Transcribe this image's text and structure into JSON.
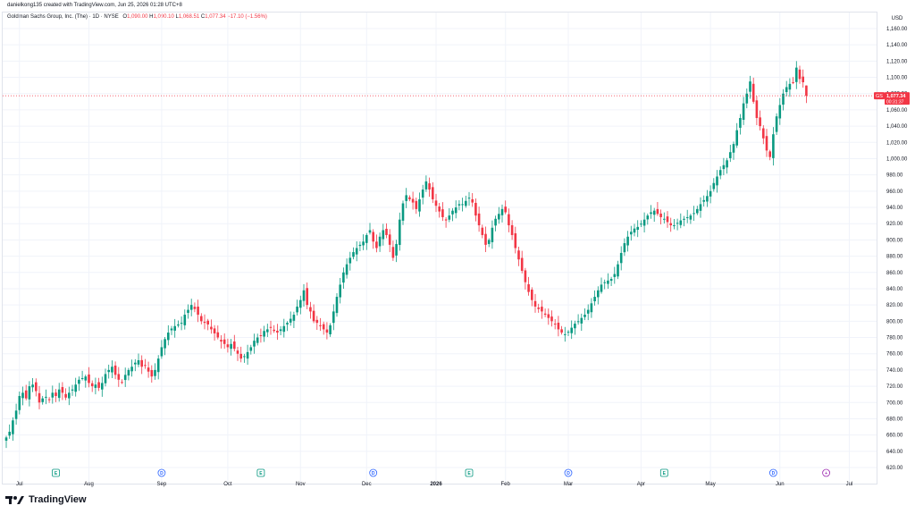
{
  "caption": "danielkong135 created with TradingView.com, Jun 25, 2026 01:28 UTC+8",
  "legend": {
    "symbol": "Goldman Sachs Group, Inc. (The) · 1D · NYSE",
    "o_label": "O",
    "o_value": "1,090.00",
    "h_label": "H",
    "h_value": "1,090.10",
    "l_label": "L",
    "l_value": "1,068.51",
    "c_label": "C",
    "c_value": "1,077.34",
    "change": "−17.10 (−1.56%)"
  },
  "price_tag": {
    "ticker": "GS",
    "price": "1,077.34",
    "countdown": "00:31:37",
    "color": "#f23645"
  },
  "footer": {
    "brand": "TradingView"
  },
  "colors": {
    "up": "#089981",
    "down": "#f23645",
    "grid": "#f0f3fa",
    "text": "#131722",
    "event_earnings": "#089981",
    "event_dividend": "#2962ff",
    "event_other": "#9c27b0"
  },
  "chart_data": {
    "type": "candlestick",
    "currency": "USD",
    "ylim": [
      610,
      1170
    ],
    "y_ticks": [
      620,
      640,
      660,
      680,
      700,
      720,
      740,
      760,
      780,
      800,
      820,
      840,
      860,
      880,
      900,
      920,
      940,
      960,
      980,
      1000,
      1020,
      1040,
      1060,
      1080,
      1100,
      1120,
      1140,
      1160
    ],
    "y_tick_labels": [
      "620.00",
      "640.00",
      "660.00",
      "680.00",
      "700.00",
      "720.00",
      "740.00",
      "760.00",
      "780.00",
      "800.00",
      "820.00",
      "840.00",
      "860.00",
      "880.00",
      "900.00",
      "920.00",
      "940.00",
      "960.00",
      "980.00",
      "1,000.00",
      "1,020.00",
      "1,040.00",
      "1,060.00",
      "1,080.00",
      "1,100.00",
      "1,120.00",
      "1,140.00",
      "1,160.00"
    ],
    "x_labels": [
      {
        "label": "Jul",
        "index": 4
      },
      {
        "label": "Aug",
        "index": 25
      },
      {
        "label": "Sep",
        "index": 47
      },
      {
        "label": "Oct",
        "index": 67
      },
      {
        "label": "Nov",
        "index": 89
      },
      {
        "label": "Dec",
        "index": 109
      },
      {
        "label": "2026",
        "index": 130
      },
      {
        "label": "Feb",
        "index": 151
      },
      {
        "label": "Mar",
        "index": 170
      },
      {
        "label": "Apr",
        "index": 192
      },
      {
        "label": "May",
        "index": 213
      },
      {
        "label": "Jun",
        "index": 234
      },
      {
        "label": "Jul",
        "index": 255
      }
    ],
    "events": [
      {
        "type": "earnings",
        "glyph": "E",
        "index": 15
      },
      {
        "type": "dividend",
        "glyph": "D",
        "index": 47
      },
      {
        "type": "earnings",
        "glyph": "E",
        "index": 77
      },
      {
        "type": "dividend",
        "glyph": "D",
        "index": 111
      },
      {
        "type": "earnings",
        "glyph": "E",
        "index": 140
      },
      {
        "type": "dividend",
        "glyph": "D",
        "index": 170
      },
      {
        "type": "earnings",
        "glyph": "E",
        "index": 199
      },
      {
        "type": "dividend",
        "glyph": "D",
        "index": 232
      },
      {
        "type": "other",
        "glyph": "+",
        "index": 248
      }
    ],
    "closes": [
      657,
      664,
      678,
      690,
      708,
      712,
      705,
      720,
      722,
      714,
      700,
      705,
      707,
      704,
      712,
      708,
      716,
      712,
      706,
      712,
      716,
      722,
      728,
      730,
      732,
      724,
      720,
      722,
      718,
      724,
      735,
      740,
      744,
      734,
      728,
      725,
      734,
      740,
      744,
      749,
      752,
      744,
      746,
      738,
      732,
      740,
      754,
      768,
      778,
      786,
      791,
      794,
      796,
      798,
      808,
      814,
      820,
      815,
      808,
      800,
      798,
      796,
      790,
      785,
      780,
      775,
      772,
      768,
      772,
      766,
      760,
      754,
      757,
      762,
      768,
      776,
      780,
      782,
      788,
      790,
      792,
      788,
      786,
      790,
      794,
      798,
      803,
      808,
      818,
      826,
      838,
      820,
      812,
      800,
      798,
      794,
      790,
      786,
      795,
      812,
      830,
      845,
      860,
      870,
      878,
      885,
      890,
      894,
      898,
      906,
      912,
      898,
      890,
      904,
      912,
      906,
      894,
      878,
      895,
      925,
      945,
      955,
      950,
      946,
      938,
      950,
      962,
      972,
      962,
      950,
      942,
      935,
      928,
      924,
      930,
      936,
      940,
      944,
      944,
      948,
      952,
      946,
      930,
      918,
      906,
      894,
      900,
      915,
      926,
      932,
      938,
      934,
      918,
      906,
      890,
      876,
      862,
      848,
      836,
      826,
      818,
      815,
      812,
      808,
      804,
      800,
      796,
      790,
      786,
      784,
      787,
      792,
      797,
      800,
      804,
      808,
      814,
      822,
      830,
      838,
      845,
      848,
      850,
      852,
      858,
      870,
      884,
      896,
      904,
      910,
      914,
      916,
      920,
      925,
      930,
      934,
      936,
      932,
      928,
      926,
      922,
      918,
      918,
      921,
      924,
      926,
      928,
      930,
      933,
      938,
      944,
      949,
      954,
      960,
      970,
      978,
      986,
      992,
      998,
      1008,
      1018,
      1035,
      1050,
      1068,
      1080,
      1095,
      1070,
      1050,
      1040,
      1025,
      1010,
      1002,
      1030,
      1052,
      1066,
      1080,
      1088,
      1092,
      1094,
      1112,
      1098,
      1094,
      1077.34
    ],
    "last": {
      "open": 1090.0,
      "high": 1090.1,
      "low": 1068.51,
      "close": 1077.34,
      "change": -17.1,
      "change_pct": -1.56
    }
  }
}
